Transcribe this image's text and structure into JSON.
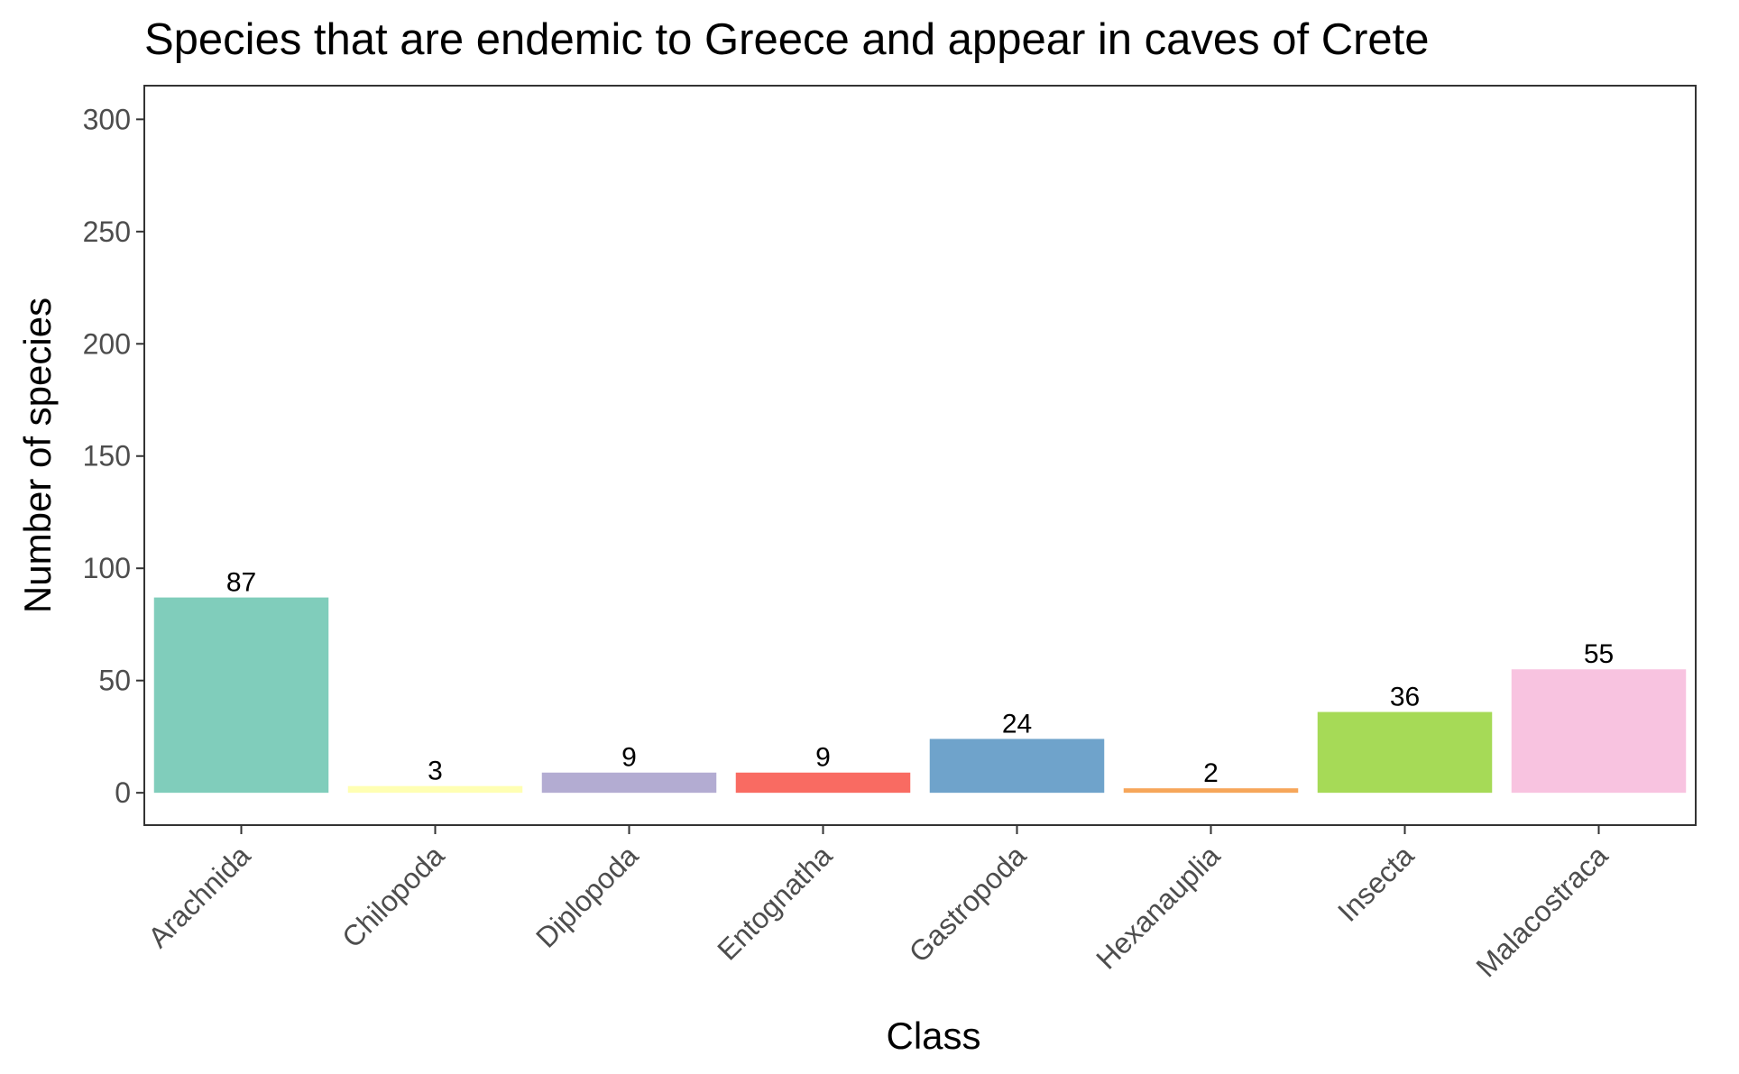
{
  "chart_data": {
    "type": "bar",
    "title": "Species that are endemic to Greece and appear in caves of Crete",
    "xlabel": "Class",
    "ylabel": "Number of species",
    "categories": [
      "Arachnida",
      "Chilopoda",
      "Diplopoda",
      "Entognatha",
      "Gastropoda",
      "Hexanauplia",
      "Insecta",
      "Malacostraca"
    ],
    "values": [
      87,
      3,
      9,
      9,
      24,
      2,
      36,
      55
    ],
    "colors": [
      "#80cdbb",
      "#ffffb3",
      "#b3acd2",
      "#f96b62",
      "#6fa3cb",
      "#f6a65a",
      "#a6da57",
      "#f8c3e0"
    ],
    "yticks": [
      0,
      50,
      100,
      150,
      200,
      250,
      300
    ],
    "ylim": [
      -14.4,
      315
    ],
    "grid": false,
    "legend": "none"
  }
}
